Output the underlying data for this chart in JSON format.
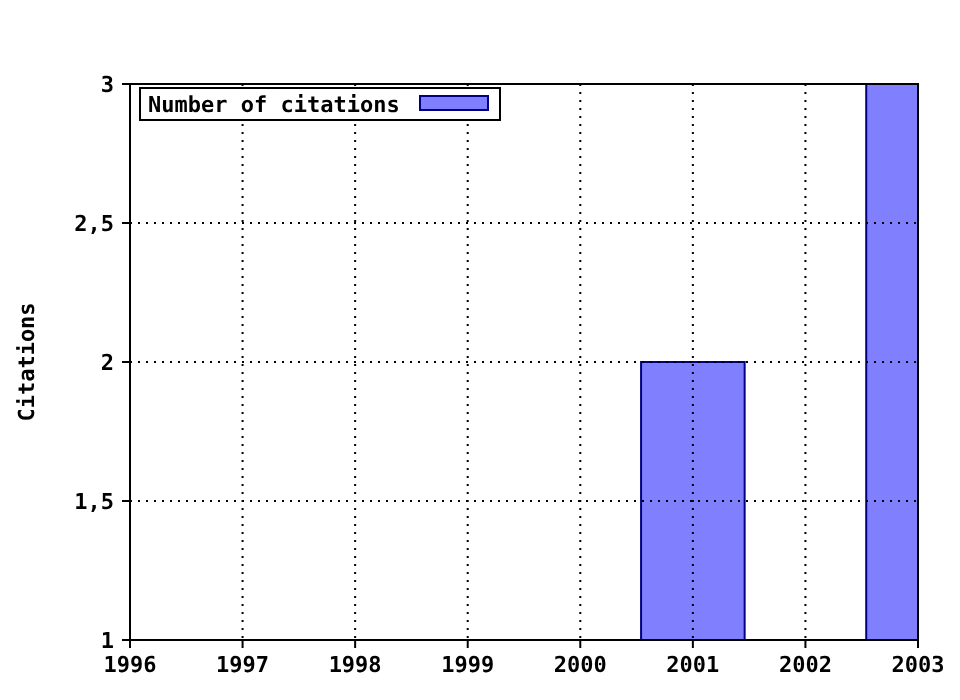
{
  "chart_data": {
    "type": "bar",
    "ylabel": "Citations",
    "x": [
      2001,
      2003
    ],
    "series": [
      {
        "name": "Number of citations",
        "color": "#8080ff",
        "values": [
          2,
          3
        ]
      }
    ],
    "xlim": [
      1996,
      2003
    ],
    "xticks": [
      1996,
      1997,
      1998,
      1999,
      2000,
      2001,
      2002,
      2003
    ],
    "ylim": [
      1,
      3
    ],
    "yticks": [
      1,
      {
        "value": 1.5,
        "label": "1,5"
      },
      2,
      {
        "value": 2.5,
        "label": "2,5"
      },
      3
    ],
    "grid": true,
    "legend": "top left"
  }
}
